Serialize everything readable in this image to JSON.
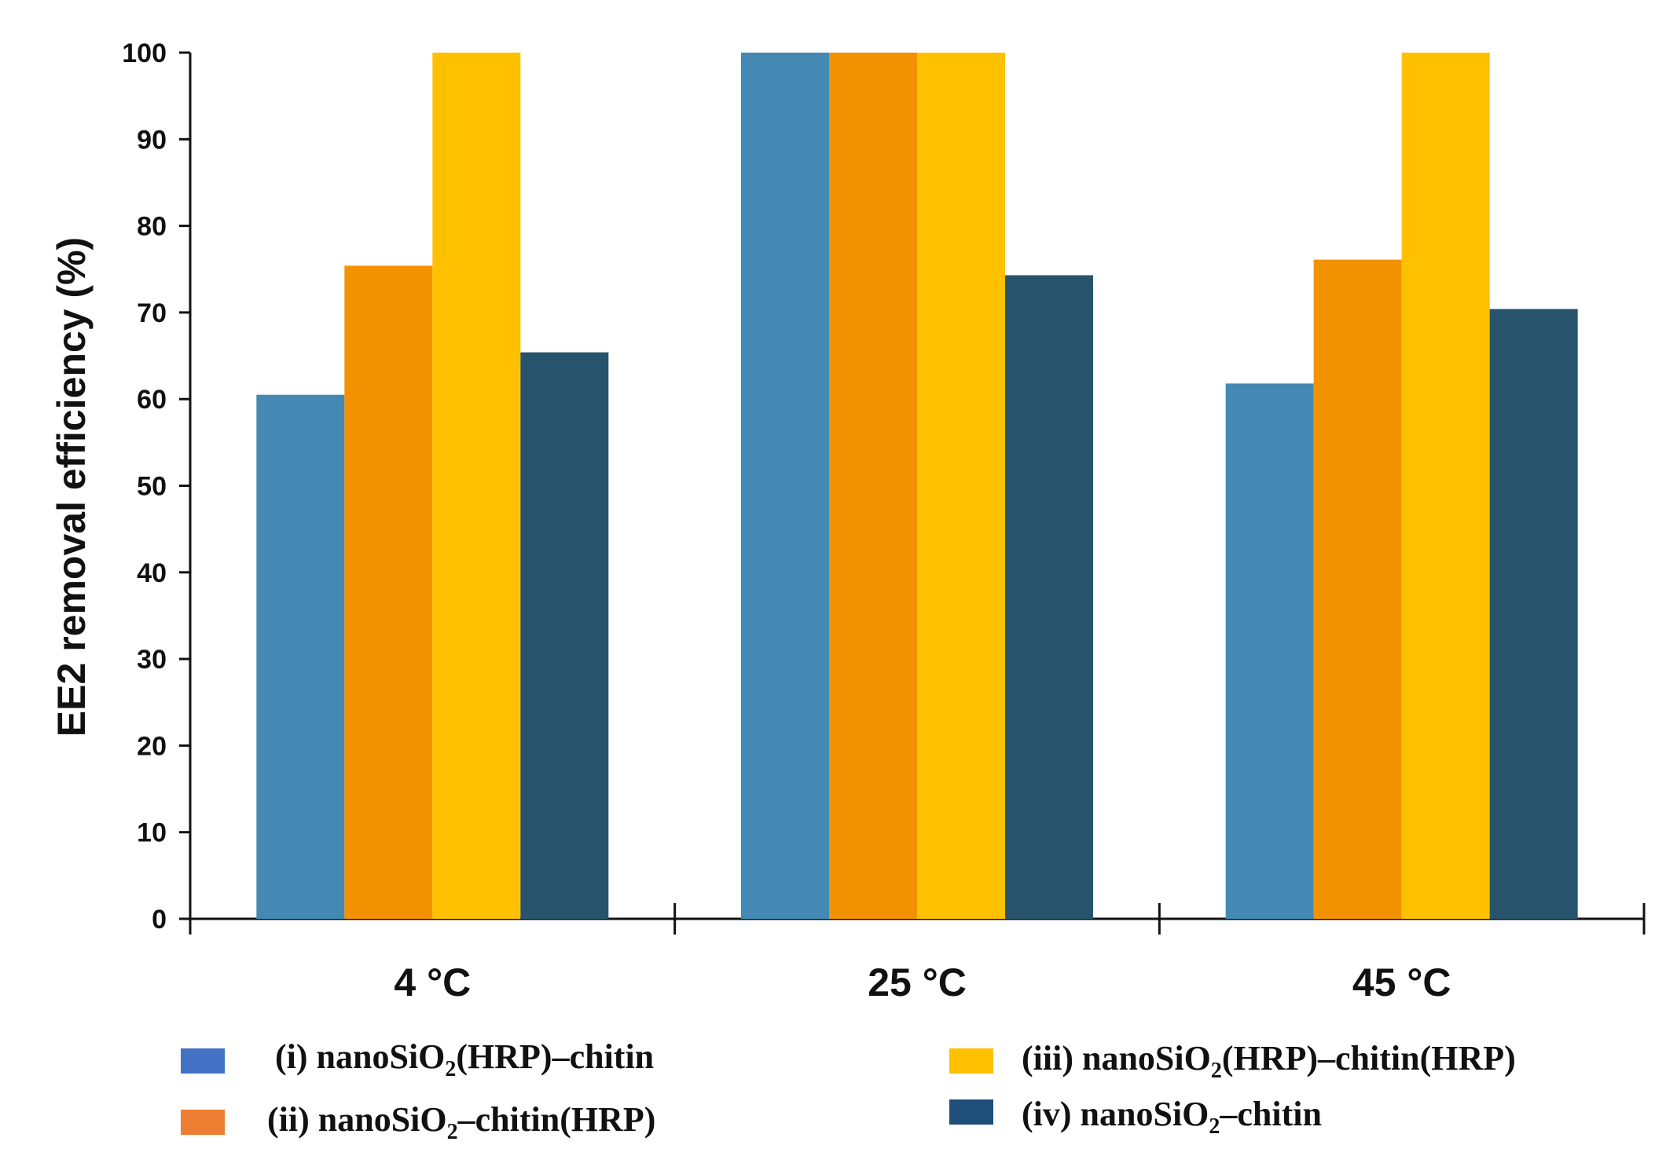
{
  "chart_data": {
    "type": "bar",
    "title": "",
    "xlabel": "",
    "ylabel": "EE2 removal  efficiency (%)",
    "ylim": [
      0,
      100
    ],
    "yticks": [
      0,
      10,
      20,
      30,
      40,
      50,
      60,
      70,
      80,
      90,
      100
    ],
    "categories": [
      "4 °C",
      "25 °C",
      "45 °C"
    ],
    "legend_position": "bottom",
    "series": [
      {
        "name": "(i) nanoSiO2(HRP)–chitin",
        "legend_parts": [
          "(i) nanoSiO",
          "2",
          "(HRP)–chitin"
        ],
        "color": "#4389b4",
        "legend_color": "#4472c4",
        "values": [
          60.5,
          100,
          61.8
        ]
      },
      {
        "name": "(ii) nanoSiO2–chitin(HRP)",
        "legend_parts": [
          "(ii) nanoSiO",
          "2",
          "–chitin(HRP)"
        ],
        "color": "#f39200",
        "legend_color": "#ed7d31",
        "values": [
          75.4,
          100,
          76.1
        ]
      },
      {
        "name": "(iii) nanoSiO2(HRP)–chitin(HRP)",
        "legend_parts": [
          "(iii) nanoSiO",
          "2",
          "(HRP)–chitin(HRP)"
        ],
        "color": "#ffc000",
        "legend_color": "#ffc000",
        "values": [
          100,
          100,
          100
        ]
      },
      {
        "name": "(iv) nanoSiO2–chitin",
        "legend_parts": [
          "(iv) nanoSiO",
          "2",
          "–chitin"
        ],
        "color": "#27546c",
        "legend_color": "#1f4e79",
        "values": [
          65.4,
          74.3,
          70.4
        ]
      }
    ]
  }
}
